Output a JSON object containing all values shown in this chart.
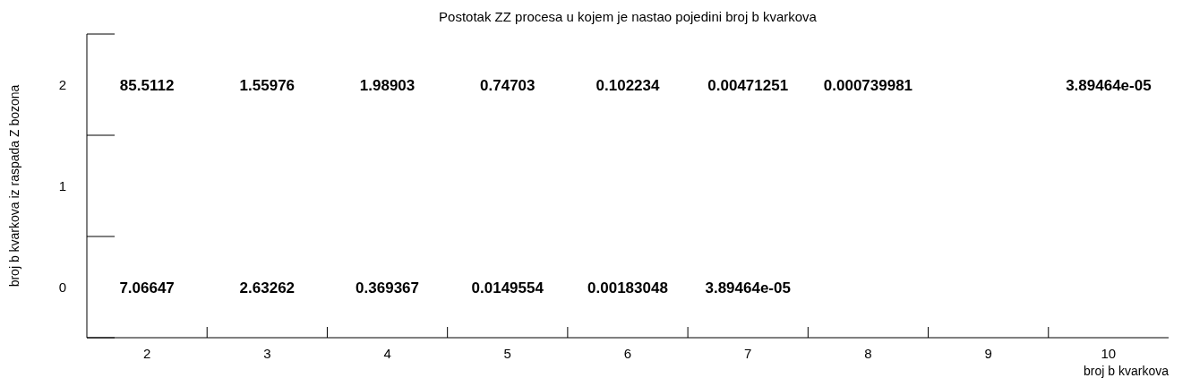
{
  "chart_data": {
    "type": "heatmap",
    "title": "Postotak ZZ procesa u kojem je nastao pojedini broj b kvarkova",
    "xlabel": "broj b kvarkova",
    "ylabel": "broj b kvarkova iz raspada Z bozona",
    "categories": [
      "2",
      "3",
      "4",
      "5",
      "6",
      "7",
      "8",
      "9",
      "10"
    ],
    "y_categories": [
      "2",
      "1",
      "0"
    ],
    "data_labels": true,
    "cells": [
      [
        85.5112,
        1.55976,
        1.98903,
        0.74703,
        0.102234,
        0.00471251,
        0.000739981,
        null,
        3.89464e-05
      ],
      [
        null,
        null,
        null,
        null,
        null,
        null,
        null,
        null,
        null
      ],
      [
        7.06647,
        2.63262,
        0.369367,
        0.0149554,
        0.00183048,
        3.89464e-05,
        null,
        null,
        null
      ]
    ]
  }
}
